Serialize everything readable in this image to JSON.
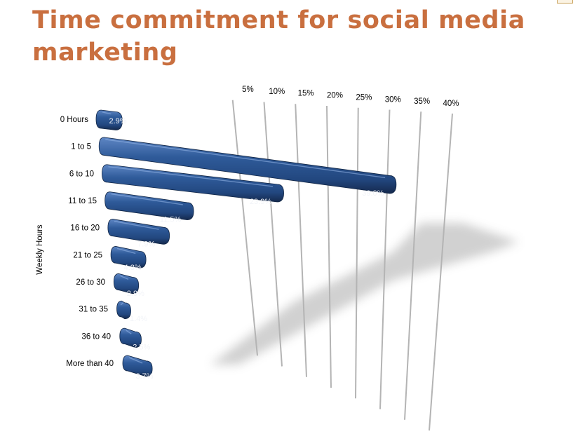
{
  "title": "Time commitment for social media marketing",
  "chart_data": {
    "type": "bar",
    "orientation": "horizontal",
    "title": "Time commitment for social media marketing",
    "ylabel": "Weekly Hours",
    "xlabel": "",
    "categories": [
      "0 Hours",
      "1 to 5",
      "6 to 10",
      "11 to 15",
      "16 to 20",
      "21 to 25",
      "26 to 30",
      "31 to 35",
      "36 to 40",
      "More than 40"
    ],
    "values": [
      2.9,
      39.0,
      23.9,
      11.5,
      7.9,
      4.3,
      2.9,
      1.4,
      2.5,
      3.7
    ],
    "value_labels": [
      "2.9%",
      "39.0%",
      "23.9%",
      "11.5%",
      "7.9%",
      "4.3%",
      "2.9%",
      "1.4%",
      "2.5%",
      "3.7%"
    ],
    "x_ticks": [
      "5%",
      "10%",
      "15%",
      "20%",
      "25%",
      "30%",
      "35%",
      "40%"
    ],
    "xlim": [
      0,
      40
    ],
    "grid": true,
    "legend": "none",
    "colors": {
      "bar": "#2b5592",
      "bar_dark": "#15294d",
      "bar_light": "#5e86c4",
      "title": "#c96f3f",
      "grid": "#b4b4b4"
    }
  }
}
